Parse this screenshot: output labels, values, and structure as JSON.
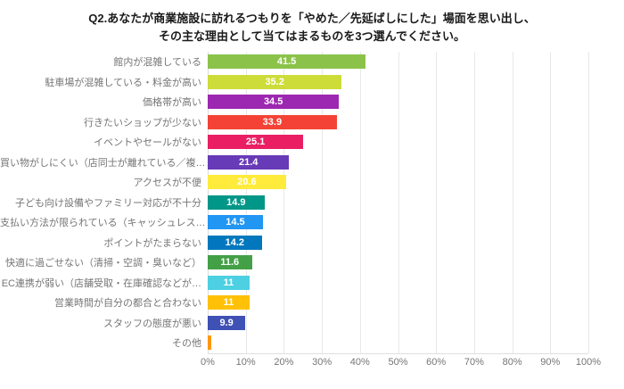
{
  "title": {
    "line1": "Q2.あなたが商業施設に訪れるつもりを「やめた／先延ばしにした」場面を思い出し、",
    "line2": "その主な理由として当てはまるものを3つ選んでください。"
  },
  "axis": {
    "ticks": [
      "0%",
      "10%",
      "20%",
      "30%",
      "40%",
      "50%",
      "60%",
      "70%",
      "80%",
      "90%",
      "100%"
    ]
  },
  "style_colors": {
    "grid": "#e8e8e8",
    "axis_text": "#757575",
    "category_text": "#757575",
    "value_text": "#ffffff",
    "title_text": "#1a1a1a"
  },
  "chart_data": {
    "type": "bar",
    "orientation": "horizontal",
    "title": "Q2.あなたが商業施設に訪れるつもりを「やめた／先延ばしにした」場面を思い出し、その主な理由として当てはまるものを3つ選んでください。",
    "categories": [
      "館内が混雑している",
      "駐車場が混雑している・料金が高い",
      "価格帯が高い",
      "行きたいショップが少ない",
      "イベントやセールがない",
      "買い物がしにくい（店同士が離れている／複…",
      "アクセスが不便",
      "子ども向け設備やファミリー対応が不十分",
      "支払い方法が限られている（キャッシュレス…",
      "ポイントがたまらない",
      "快適に過ごせない（清掃・空調・臭いなど）",
      "EC連携が弱い（店舗受取・在庫確認などが…",
      "営業時間が自分の都合と合わない",
      "スタッフの態度が悪い",
      "その他"
    ],
    "values": [
      41.5,
      35.2,
      34.5,
      33.9,
      25.1,
      21.4,
      20.6,
      14.9,
      14.5,
      14.2,
      11.6,
      11,
      11,
      9.9,
      1
    ],
    "value_labels": [
      "41.5",
      "35.2",
      "34.5",
      "33.9",
      "25.1",
      "21.4",
      "20.6",
      "14.9",
      "14.5",
      "14.2",
      "11.6",
      "11",
      "11",
      "9.9",
      ""
    ],
    "bar_colors": [
      "#8bc34a",
      "#cddc39",
      "#9c27b0",
      "#f44336",
      "#e91e63",
      "#673ab7",
      "#ffeb3b",
      "#009688",
      "#2196f3",
      "#0277bd",
      "#43a047",
      "#4dd0e1",
      "#ffc107",
      "#3f51b5",
      "#ff9800"
    ],
    "xlabel": "",
    "ylabel": "",
    "xlim": [
      0,
      100
    ],
    "x_tick_labels": [
      "0%",
      "10%",
      "20%",
      "30%",
      "40%",
      "50%",
      "60%",
      "70%",
      "80%",
      "90%",
      "100%"
    ],
    "grid": true,
    "legend": false
  }
}
